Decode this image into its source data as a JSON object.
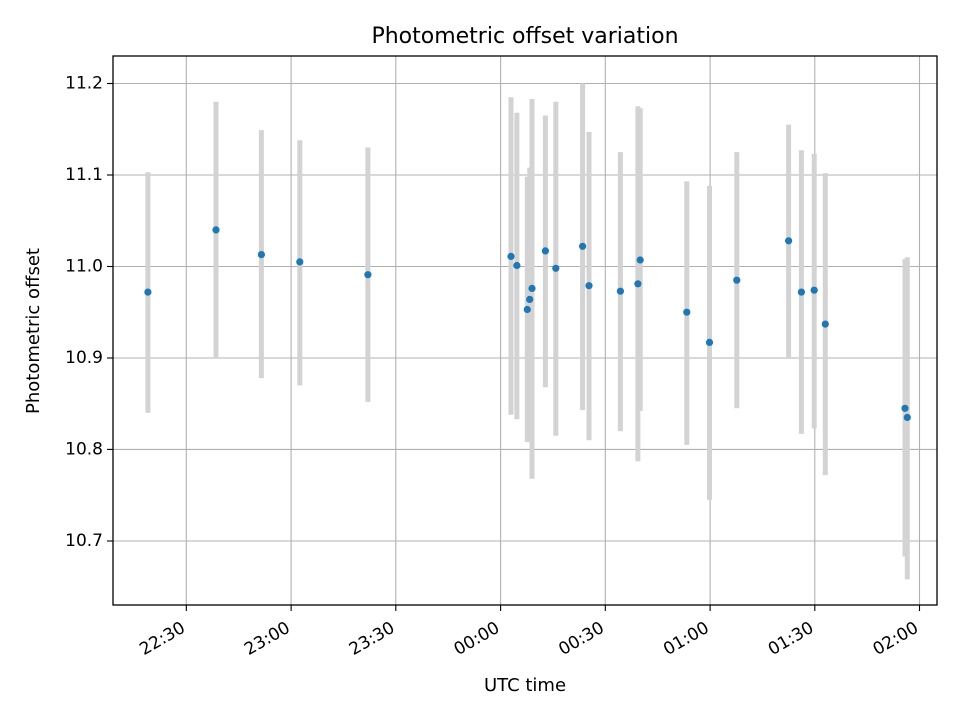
{
  "chart_data": {
    "type": "scatter",
    "title": "Photometric offset variation",
    "xlabel": "UTC time",
    "ylabel": "Photometric offset",
    "grid": true,
    "x_unit": "UTC time (HH:MM:SS)",
    "xlim": [
      "22:09:00",
      "02:05:00"
    ],
    "ylim": [
      10.63,
      11.23
    ],
    "xticks": [
      "22:30",
      "23:00",
      "23:30",
      "00:00",
      "00:30",
      "01:00",
      "01:30",
      "02:00"
    ],
    "yticks": [
      "10.7",
      "10.8",
      "10.9",
      "11.0",
      "11.1",
      "11.2"
    ],
    "series": [
      {
        "marker_color": "#1f77b4",
        "errorbar_color": "#d3d3d3",
        "points": [
          {
            "x": "22:19:00",
            "y": 10.972,
            "ylow": 10.84,
            "yhigh": 11.103
          },
          {
            "x": "22:38:30",
            "y": 11.04,
            "ylow": 10.9,
            "yhigh": 11.18
          },
          {
            "x": "22:51:30",
            "y": 11.013,
            "ylow": 10.878,
            "yhigh": 11.149
          },
          {
            "x": "23:02:30",
            "y": 11.005,
            "ylow": 10.87,
            "yhigh": 11.138
          },
          {
            "x": "23:22:00",
            "y": 10.991,
            "ylow": 10.852,
            "yhigh": 11.13
          },
          {
            "x": "00:03:00",
            "y": 11.011,
            "ylow": 10.838,
            "yhigh": 11.185
          },
          {
            "x": "00:04:40",
            "y": 11.001,
            "ylow": 10.833,
            "yhigh": 11.168
          },
          {
            "x": "00:07:40",
            "y": 10.953,
            "ylow": 10.808,
            "yhigh": 11.098
          },
          {
            "x": "00:08:20",
            "y": 10.964,
            "ylow": 10.818,
            "yhigh": 11.108
          },
          {
            "x": "00:09:00",
            "y": 10.976,
            "ylow": 10.768,
            "yhigh": 11.183
          },
          {
            "x": "00:12:50",
            "y": 11.017,
            "ylow": 10.868,
            "yhigh": 11.165
          },
          {
            "x": "00:15:50",
            "y": 10.998,
            "ylow": 10.815,
            "yhigh": 11.18
          },
          {
            "x": "00:23:30",
            "y": 11.022,
            "ylow": 10.843,
            "yhigh": 11.2
          },
          {
            "x": "00:25:20",
            "y": 10.979,
            "ylow": 10.81,
            "yhigh": 11.147
          },
          {
            "x": "00:34:20",
            "y": 10.973,
            "ylow": 10.82,
            "yhigh": 11.125
          },
          {
            "x": "00:39:20",
            "y": 10.981,
            "ylow": 10.787,
            "yhigh": 11.175
          },
          {
            "x": "00:40:00",
            "y": 11.007,
            "ylow": 10.842,
            "yhigh": 11.173
          },
          {
            "x": "00:53:20",
            "y": 10.95,
            "ylow": 10.805,
            "yhigh": 11.093
          },
          {
            "x": "00:59:50",
            "y": 10.917,
            "ylow": 10.745,
            "yhigh": 11.088
          },
          {
            "x": "01:07:40",
            "y": 10.985,
            "ylow": 10.845,
            "yhigh": 11.125
          },
          {
            "x": "01:22:30",
            "y": 11.028,
            "ylow": 10.9,
            "yhigh": 11.155
          },
          {
            "x": "01:26:10",
            "y": 10.972,
            "ylow": 10.817,
            "yhigh": 11.127
          },
          {
            "x": "01:29:50",
            "y": 10.974,
            "ylow": 10.823,
            "yhigh": 11.123
          },
          {
            "x": "01:33:00",
            "y": 10.937,
            "ylow": 10.772,
            "yhigh": 11.102
          },
          {
            "x": "01:55:50",
            "y": 10.845,
            "ylow": 10.683,
            "yhigh": 11.008
          },
          {
            "x": "01:56:30",
            "y": 10.835,
            "ylow": 10.658,
            "yhigh": 11.01
          }
        ]
      }
    ]
  }
}
